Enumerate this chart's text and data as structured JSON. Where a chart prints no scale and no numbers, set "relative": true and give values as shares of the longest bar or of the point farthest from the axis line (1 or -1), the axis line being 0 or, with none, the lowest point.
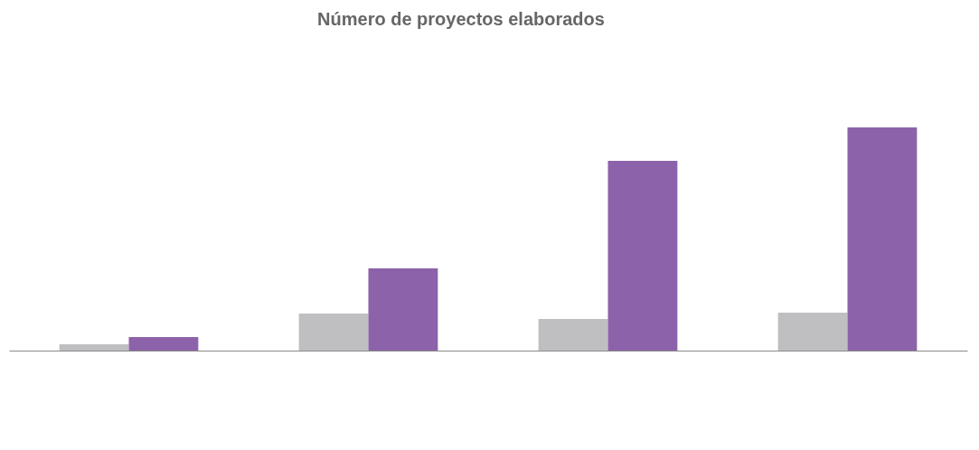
{
  "chart_data": {
    "type": "bar",
    "title": "Número de proyectos elaborados",
    "categories": [
      null,
      null,
      null,
      null
    ],
    "relative": true,
    "series": [
      {
        "color": "#bfbfc1",
        "values": [
          0.028,
          0.166,
          0.142,
          0.17
        ]
      },
      {
        "color": "#8c63aa",
        "values": [
          0.061,
          0.368,
          0.85,
          1
        ]
      }
    ]
  }
}
